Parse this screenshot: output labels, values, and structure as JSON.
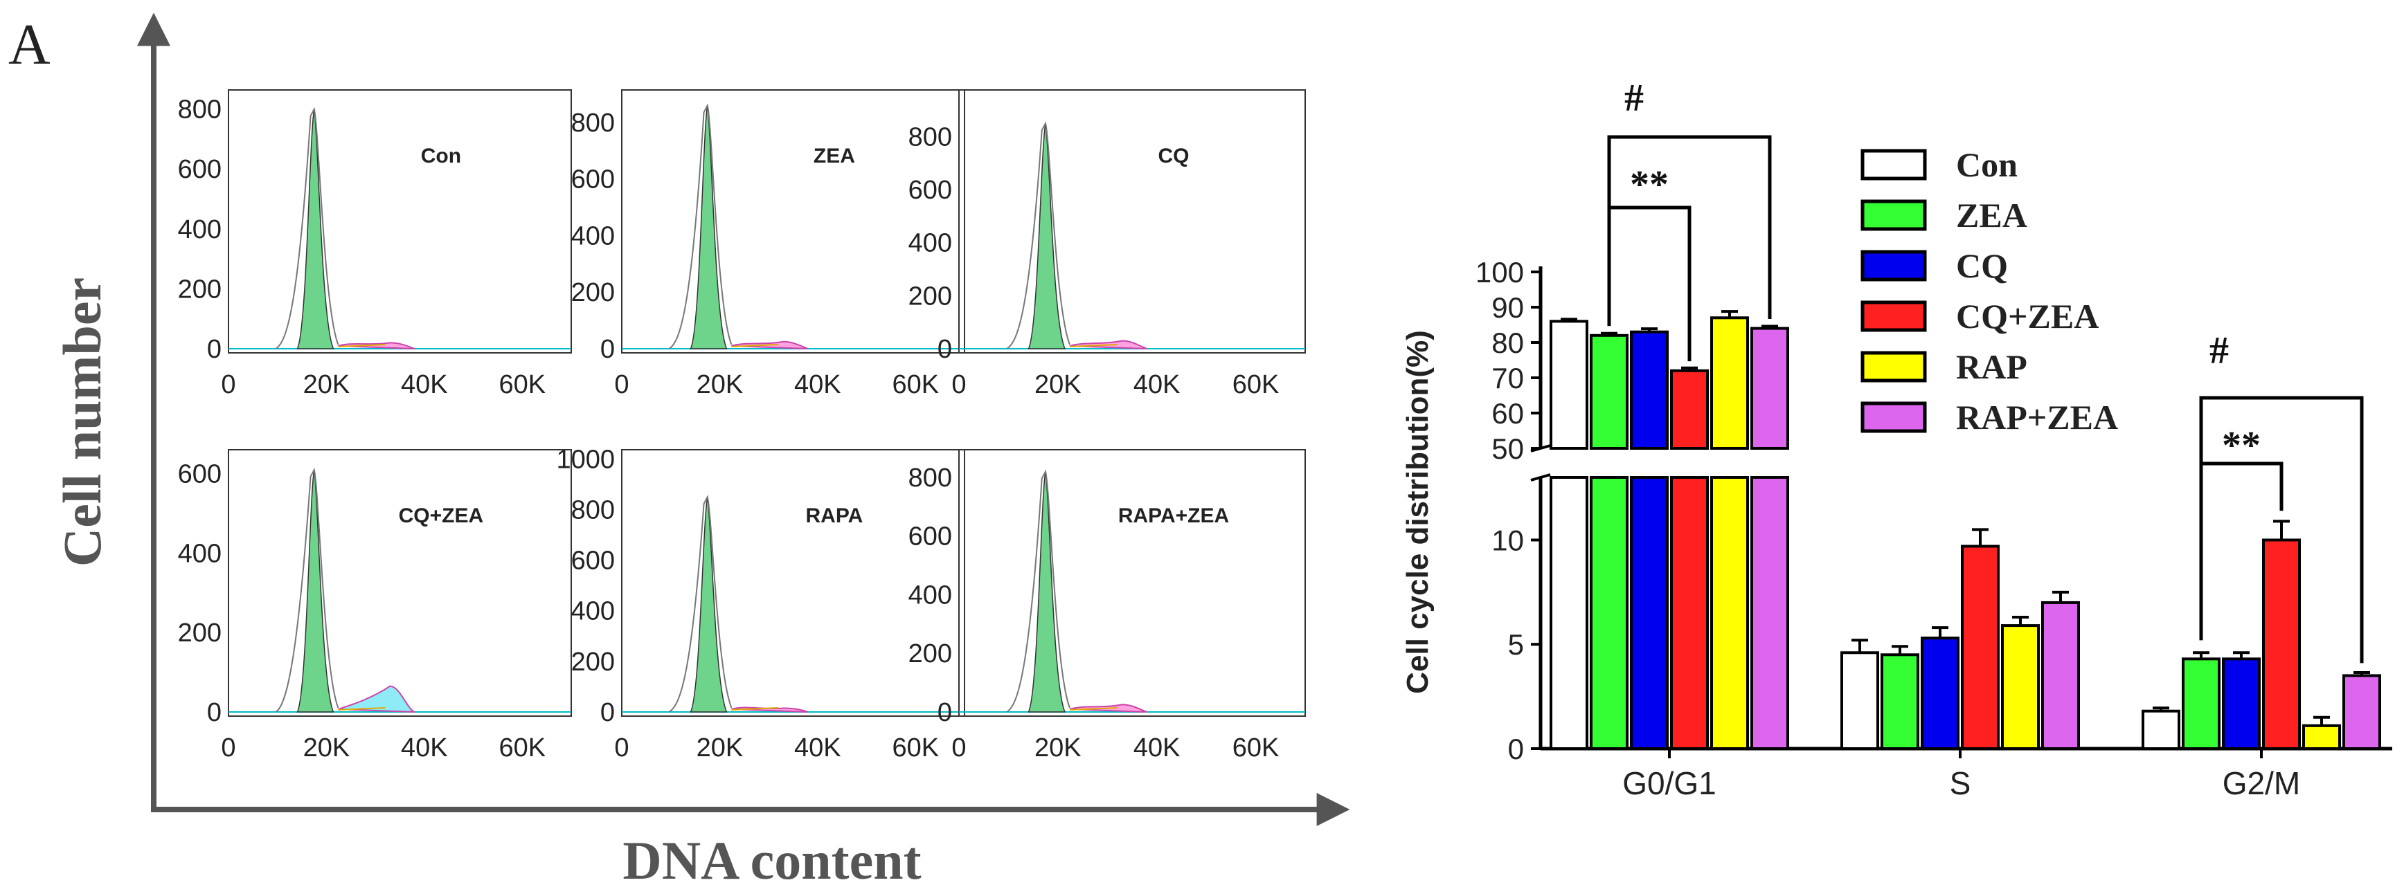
{
  "panel_letter": "A",
  "flow": {
    "y_title": "Cell number",
    "x_title": "DNA content",
    "x_ticks": [
      "0",
      "20K",
      "40K",
      "60K"
    ],
    "panels": [
      {
        "label": "Con",
        "y_ticks": [
          "0",
          "200",
          "400",
          "600",
          "800"
        ],
        "y_max": 850,
        "peak": 800,
        "g2": 20,
        "g2_color": "magenta"
      },
      {
        "label": "ZEA",
        "y_ticks": [
          "0",
          "200",
          "400",
          "600",
          "800"
        ],
        "y_max": 900,
        "peak": 860,
        "g2": 25,
        "g2_color": "magenta"
      },
      {
        "label": "CQ",
        "y_ticks": [
          "0",
          "200",
          "400",
          "600",
          "800"
        ],
        "y_max": 960,
        "peak": 850,
        "g2": 30,
        "g2_color": "magenta"
      },
      {
        "label": "CQ+ZEA",
        "y_ticks": [
          "0",
          "200",
          "400",
          "600"
        ],
        "y_max": 650,
        "peak": 610,
        "g2": 65,
        "g2_color": "cyan"
      },
      {
        "label": "RAPA",
        "y_ticks": [
          "0",
          "200",
          "400",
          "600",
          "800",
          "1000"
        ],
        "y_max": 1020,
        "peak": 850,
        "g2": 15,
        "g2_color": "magenta"
      },
      {
        "label": "RAPA+ZEA",
        "y_ticks": [
          "0",
          "200",
          "400",
          "600",
          "800"
        ],
        "y_max": 880,
        "peak": 820,
        "g2": 25,
        "g2_color": "magenta"
      }
    ]
  },
  "chart_data": {
    "type": "bar",
    "ylabel": "Cell cycle distribution(%)",
    "categories": [
      "G0/G1",
      "S",
      "G2/M"
    ],
    "y_ticks_lower": [
      "0",
      "5",
      "10"
    ],
    "y_ticks_upper": [
      "50",
      "60",
      "70",
      "80",
      "90",
      "100"
    ],
    "ylim_lower": [
      0,
      13
    ],
    "ylim_upper": [
      50,
      100
    ],
    "series": [
      {
        "name": "Con",
        "color": "#ffffff",
        "values": [
          86,
          4.6,
          1.8
        ],
        "errors": [
          0.6,
          0.6,
          0.15
        ]
      },
      {
        "name": "ZEA",
        "color": "#33ff33",
        "values": [
          82,
          4.5,
          4.3
        ],
        "errors": [
          0.6,
          0.4,
          0.3
        ]
      },
      {
        "name": "CQ",
        "color": "#0000ee",
        "values": [
          83,
          5.3,
          4.3
        ],
        "errors": [
          0.9,
          0.5,
          0.3
        ]
      },
      {
        "name": "CQ+ZEA",
        "color": "#ff2020",
        "values": [
          72,
          9.7,
          10.0
        ],
        "errors": [
          0.8,
          0.8,
          0.9
        ]
      },
      {
        "name": "RAP",
        "color": "#ffff00",
        "values": [
          87,
          5.9,
          1.1
        ],
        "errors": [
          1.8,
          0.4,
          0.4
        ]
      },
      {
        "name": "RAP+ZEA",
        "color": "#dd66ee",
        "values": [
          84,
          7.0,
          3.5
        ],
        "errors": [
          0.6,
          0.5,
          0.15
        ]
      }
    ],
    "annotations": [
      {
        "group": "G0/G1",
        "text": "#",
        "from": "ZEA",
        "to": "RAP+ZEA"
      },
      {
        "group": "G0/G1",
        "text": "**",
        "from": "ZEA",
        "to": "CQ+ZEA"
      },
      {
        "group": "G2/M",
        "text": "#",
        "from": "ZEA",
        "to": "RAP+ZEA"
      },
      {
        "group": "G2/M",
        "text": "**",
        "from": "ZEA",
        "to": "CQ+ZEA"
      }
    ]
  }
}
